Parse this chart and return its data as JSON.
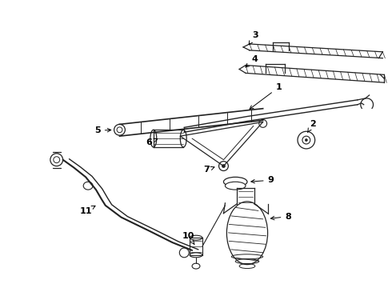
{
  "background_color": "#ffffff",
  "line_color": "#222222",
  "fig_width": 4.9,
  "fig_height": 3.6,
  "dpi": 100
}
